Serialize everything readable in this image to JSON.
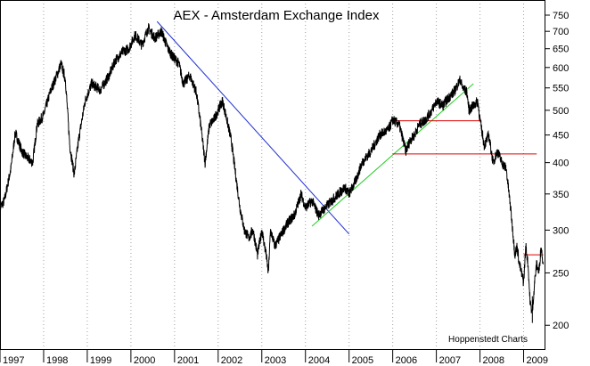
{
  "chart_data": {
    "type": "line",
    "title": "AEX - Amsterdam Exchange Index",
    "credit": "Hoppenstedt Charts",
    "y_scale": "log",
    "ylim": [
      180,
      800
    ],
    "y_ticks": [
      200,
      250,
      300,
      350,
      400,
      450,
      500,
      550,
      600,
      650,
      700,
      750
    ],
    "xlim": [
      1997.0,
      2009.5
    ],
    "x_tick_labels": [
      "1997",
      "1998",
      "1999",
      "2000",
      "2001",
      "2002",
      "2003",
      "2004",
      "2005",
      "2006",
      "2007",
      "2008",
      "2009"
    ],
    "grid": "vertical dotted per year",
    "colors": {
      "series": "#000000",
      "downtrend": "#1f2fd0",
      "uptrend": "#22cc22",
      "resistance": "#dd0000",
      "grid": "#a0a0a0"
    },
    "series": [
      {
        "x": [
          1997.0,
          1997.1,
          1997.25,
          1997.35,
          1997.5,
          1997.6,
          1997.75,
          1997.85,
          1998.0,
          1998.15,
          1998.3,
          1998.4,
          1998.5,
          1998.6,
          1998.7,
          1998.8,
          1998.95,
          1999.1,
          1999.3,
          1999.5,
          1999.65,
          1999.8,
          1999.95,
          2000.1,
          2000.25,
          2000.4,
          2000.55,
          2000.7,
          2000.85,
          2000.95,
          2001.1,
          2001.2,
          2001.35,
          2001.5,
          2001.6,
          2001.7,
          2001.8,
          2001.9,
          2002.0,
          2002.1,
          2002.2,
          2002.3,
          2002.4,
          2002.5,
          2002.6,
          2002.7,
          2002.8,
          2002.9,
          2003.0,
          2003.1,
          2003.15,
          2003.2,
          2003.3,
          2003.4,
          2003.5,
          2003.6,
          2003.75,
          2003.9,
          2004.0,
          2004.15,
          2004.3,
          2004.45,
          2004.6,
          2004.75,
          2004.9,
          2005.0,
          2005.15,
          2005.3,
          2005.5,
          2005.7,
          2005.9,
          2006.0,
          2006.15,
          2006.3,
          2006.4,
          2006.5,
          2006.6,
          2006.75,
          2006.9,
          2007.0,
          2007.15,
          2007.3,
          2007.4,
          2007.5,
          2007.55,
          2007.6,
          2007.7,
          2007.75,
          2007.85,
          2007.95,
          2008.0,
          2008.1,
          2008.2,
          2008.3,
          2008.4,
          2008.5,
          2008.6,
          2008.65,
          2008.7,
          2008.75,
          2008.8,
          2008.85,
          2008.9,
          2008.95,
          2009.0,
          2009.05,
          2009.1,
          2009.15,
          2009.2,
          2009.25,
          2009.3,
          2009.35,
          2009.4,
          2009.45
        ],
        "y": [
          330,
          340,
          390,
          455,
          420,
          410,
          400,
          470,
          490,
          540,
          580,
          610,
          570,
          430,
          380,
          440,
          520,
          560,
          545,
          580,
          620,
          640,
          650,
          690,
          660,
          710,
          680,
          700,
          650,
          630,
          610,
          560,
          580,
          540,
          470,
          400,
          470,
          480,
          500,
          520,
          480,
          440,
          380,
          330,
          300,
          290,
          300,
          270,
          300,
          270,
          250,
          300,
          280,
          290,
          300,
          310,
          320,
          350,
          330,
          340,
          320,
          330,
          340,
          350,
          360,
          350,
          370,
          400,
          420,
          450,
          460,
          480,
          470,
          420,
          440,
          450,
          470,
          480,
          500,
          520,
          510,
          530,
          540,
          560,
          570,
          550,
          540,
          500,
          510,
          520,
          480,
          430,
          450,
          400,
          420,
          400,
          390,
          360,
          330,
          300,
          270,
          280,
          260,
          250,
          240,
          280,
          260,
          220,
          210,
          240,
          260,
          250,
          280,
          260
        ],
        "minimum": {
          "x": 2009.2,
          "y": 202
        }
      }
    ],
    "trendlines": [
      {
        "type": "downtrend",
        "from": {
          "x": 2000.6,
          "y": 730
        },
        "to": {
          "x": 2005.0,
          "y": 295
        }
      },
      {
        "type": "uptrend",
        "from": {
          "x": 2004.15,
          "y": 305
        },
        "to": {
          "x": 2007.85,
          "y": 560
        }
      }
    ],
    "resistance_levels": [
      {
        "y": 478,
        "x_from": 2006.0,
        "x_to": 2008.0
      },
      {
        "y": 415,
        "x_from": 2006.0,
        "x_to": 2009.3
      },
      {
        "y": 270,
        "x_from": 2009.0,
        "x_to": 2009.45
      }
    ]
  }
}
